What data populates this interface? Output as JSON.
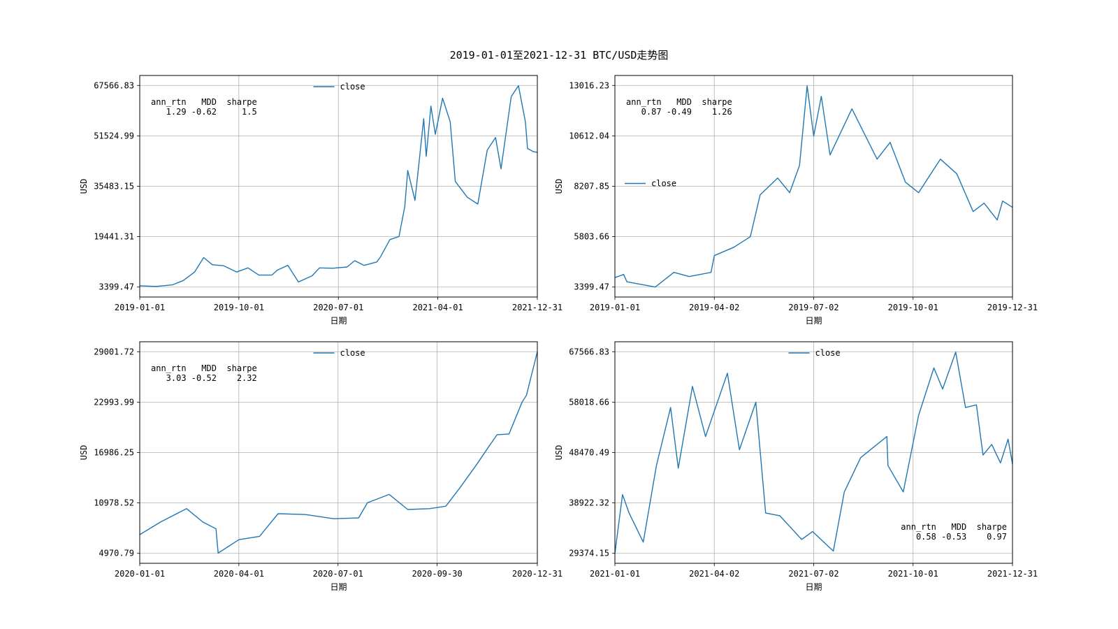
{
  "figure": {
    "title": "2019-01-01至2021-12-31 BTC/USD走势图"
  },
  "colors": {
    "line": "#1f77b4",
    "grid": "#b0b0b0",
    "axis": "#000000"
  },
  "chart_data": [
    {
      "type": "line",
      "name": "full-period",
      "xlabel": "日期",
      "ylabel": "USD",
      "x_ticks": [
        "2019-01-01",
        "2019-10-01",
        "2020-07-01",
        "2021-04-01",
        "2021-12-31"
      ],
      "y_ticks": [
        "3399.47",
        "19441.31",
        "35483.15",
        "51524.99",
        "67566.83"
      ],
      "xlim": [
        "2019-01-01",
        "2021-12-31"
      ],
      "ylim": [
        3399.47,
        67566.83
      ],
      "grid": true,
      "legend": {
        "labels": [
          "close"
        ],
        "placement": "upper-center"
      },
      "stats": {
        "header": "ann_rtn   MDD  sharpe",
        "values": "   1.29 -0.62     1.5",
        "placement": "upper-left"
      },
      "series": [
        {
          "name": "close",
          "points": [
            [
              "2019-01-01",
              3800
            ],
            [
              "2019-02-15",
              3600
            ],
            [
              "2019-04-01",
              4100
            ],
            [
              "2019-05-01",
              5500
            ],
            [
              "2019-06-01",
              8200
            ],
            [
              "2019-06-26",
              12800
            ],
            [
              "2019-07-20",
              10500
            ],
            [
              "2019-08-20",
              10200
            ],
            [
              "2019-09-25",
              8200
            ],
            [
              "2019-10-26",
              9500
            ],
            [
              "2019-11-25",
              7200
            ],
            [
              "2019-12-31",
              7200
            ],
            [
              "2020-01-15",
              8800
            ],
            [
              "2020-02-13",
              10300
            ],
            [
              "2020-03-13",
              5000
            ],
            [
              "2020-04-20",
              7000
            ],
            [
              "2020-05-10",
              9500
            ],
            [
              "2020-06-15",
              9400
            ],
            [
              "2020-07-25",
              9800
            ],
            [
              "2020-08-15",
              11800
            ],
            [
              "2020-09-10",
              10300
            ],
            [
              "2020-10-15",
              11400
            ],
            [
              "2020-10-25",
              13000
            ],
            [
              "2020-11-20",
              18500
            ],
            [
              "2020-12-15",
              19500
            ],
            [
              "2020-12-31",
              29000
            ],
            [
              "2021-01-08",
              40500
            ],
            [
              "2021-01-28",
              31000
            ],
            [
              "2021-02-21",
              57000
            ],
            [
              "2021-02-28",
              45000
            ],
            [
              "2021-03-13",
              61000
            ],
            [
              "2021-03-25",
              52000
            ],
            [
              "2021-04-14",
              63500
            ],
            [
              "2021-05-05",
              56000
            ],
            [
              "2021-05-19",
              37000
            ],
            [
              "2021-06-21",
              32000
            ],
            [
              "2021-07-20",
              29800
            ],
            [
              "2021-08-15",
              47000
            ],
            [
              "2021-09-07",
              51000
            ],
            [
              "2021-09-22",
              41000
            ],
            [
              "2021-10-20",
              64000
            ],
            [
              "2021-11-09",
              67500
            ],
            [
              "2021-11-28",
              56000
            ],
            [
              "2021-12-04",
              47500
            ],
            [
              "2021-12-20",
              46500
            ],
            [
              "2021-12-31",
              46300
            ]
          ]
        }
      ]
    },
    {
      "type": "line",
      "name": "year-2019",
      "xlabel": "日期",
      "ylabel": "USD",
      "x_ticks": [
        "2019-01-01",
        "2019-04-02",
        "2019-07-02",
        "2019-10-01",
        "2019-12-31"
      ],
      "y_ticks": [
        "3399.47",
        "5803.66",
        "8207.85",
        "10612.04",
        "13016.23"
      ],
      "xlim": [
        "2019-01-01",
        "2019-12-31"
      ],
      "ylim": [
        3399.47,
        13016.23
      ],
      "grid": true,
      "legend": {
        "labels": [
          "close"
        ],
        "placement": "center-left"
      },
      "stats": {
        "header": "ann_rtn   MDD  sharpe",
        "values": "   0.87 -0.49    1.26",
        "placement": "upper-left"
      },
      "series": [
        {
          "name": "close",
          "points": [
            [
              "2019-01-01",
              3850
            ],
            [
              "2019-01-09",
              4000
            ],
            [
              "2019-01-12",
              3650
            ],
            [
              "2019-02-07",
              3400
            ],
            [
              "2019-02-24",
              4100
            ],
            [
              "2019-03-10",
              3900
            ],
            [
              "2019-03-30",
              4100
            ],
            [
              "2019-04-02",
              4900
            ],
            [
              "2019-04-20",
              5300
            ],
            [
              "2019-05-05",
              5800
            ],
            [
              "2019-05-14",
              7800
            ],
            [
              "2019-05-30",
              8600
            ],
            [
              "2019-06-10",
              7900
            ],
            [
              "2019-06-19",
              9200
            ],
            [
              "2019-06-26",
              13000
            ],
            [
              "2019-07-02",
              10600
            ],
            [
              "2019-07-09",
              12500
            ],
            [
              "2019-07-17",
              9700
            ],
            [
              "2019-08-06",
              11900
            ],
            [
              "2019-08-29",
              9500
            ],
            [
              "2019-09-10",
              10300
            ],
            [
              "2019-09-24",
              8400
            ],
            [
              "2019-10-06",
              7900
            ],
            [
              "2019-10-26",
              9500
            ],
            [
              "2019-11-10",
              8800
            ],
            [
              "2019-11-25",
              7000
            ],
            [
              "2019-12-05",
              7400
            ],
            [
              "2019-12-17",
              6600
            ],
            [
              "2019-12-22",
              7500
            ],
            [
              "2019-12-31",
              7200
            ]
          ]
        }
      ]
    },
    {
      "type": "line",
      "name": "year-2020",
      "xlabel": "日期",
      "ylabel": "USD",
      "x_ticks": [
        "2020-01-01",
        "2020-04-01",
        "2020-07-01",
        "2020-09-30",
        "2020-12-31"
      ],
      "y_ticks": [
        "4970.79",
        "10978.52",
        "16986.25",
        "22993.99",
        "29001.72"
      ],
      "xlim": [
        "2020-01-01",
        "2020-12-31"
      ],
      "ylim": [
        4970.79,
        29001.72
      ],
      "grid": true,
      "legend": {
        "labels": [
          "close"
        ],
        "placement": "upper-center"
      },
      "stats": {
        "header": "ann_rtn   MDD  sharpe",
        "values": "   3.03 -0.52    2.32",
        "placement": "upper-left"
      },
      "series": [
        {
          "name": "close",
          "points": [
            [
              "2020-01-01",
              7200
            ],
            [
              "2020-01-20",
              8700
            ],
            [
              "2020-02-13",
              10300
            ],
            [
              "2020-02-28",
              8700
            ],
            [
              "2020-03-11",
              7900
            ],
            [
              "2020-03-13",
              5000
            ],
            [
              "2020-04-01",
              6600
            ],
            [
              "2020-04-20",
              7000
            ],
            [
              "2020-05-07",
              9700
            ],
            [
              "2020-06-01",
              9600
            ],
            [
              "2020-06-27",
              9100
            ],
            [
              "2020-07-20",
              9200
            ],
            [
              "2020-07-28",
              11000
            ],
            [
              "2020-08-17",
              12000
            ],
            [
              "2020-09-03",
              10200
            ],
            [
              "2020-09-23",
              10300
            ],
            [
              "2020-10-08",
              10600
            ],
            [
              "2020-10-21",
              12800
            ],
            [
              "2020-11-05",
              15500
            ],
            [
              "2020-11-17",
              17800
            ],
            [
              "2020-11-24",
              19100
            ],
            [
              "2020-12-05",
              19200
            ],
            [
              "2020-12-17",
              23000
            ],
            [
              "2020-12-21",
              23800
            ],
            [
              "2020-12-31",
              29000
            ]
          ]
        }
      ]
    },
    {
      "type": "line",
      "name": "year-2021",
      "xlabel": "日期",
      "ylabel": "USD",
      "x_ticks": [
        "2021-01-01",
        "2021-04-02",
        "2021-07-02",
        "2021-10-01",
        "2021-12-31"
      ],
      "y_ticks": [
        "29374.15",
        "38922.32",
        "48470.49",
        "58018.66",
        "67566.83"
      ],
      "xlim": [
        "2021-01-01",
        "2021-12-31"
      ],
      "ylim": [
        29374.15,
        67566.83
      ],
      "grid": true,
      "legend": {
        "labels": [
          "close"
        ],
        "placement": "upper-center"
      },
      "stats": {
        "header": "ann_rtn   MDD  sharpe",
        "values": "   0.58 -0.53    0.97",
        "placement": "lower-right"
      },
      "series": [
        {
          "name": "close",
          "points": [
            [
              "2021-01-01",
              29400
            ],
            [
              "2021-01-08",
              40500
            ],
            [
              "2021-01-14",
              37000
            ],
            [
              "2021-01-27",
              31500
            ],
            [
              "2021-02-08",
              46000
            ],
            [
              "2021-02-21",
              57000
            ],
            [
              "2021-02-28",
              45500
            ],
            [
              "2021-03-13",
              61000
            ],
            [
              "2021-03-25",
              51500
            ],
            [
              "2021-04-14",
              63500
            ],
            [
              "2021-04-25",
              49000
            ],
            [
              "2021-05-10",
              58000
            ],
            [
              "2021-05-19",
              37000
            ],
            [
              "2021-06-01",
              36500
            ],
            [
              "2021-06-21",
              32000
            ],
            [
              "2021-07-01",
              33500
            ],
            [
              "2021-07-20",
              29800
            ],
            [
              "2021-07-30",
              41000
            ],
            [
              "2021-08-14",
              47500
            ],
            [
              "2021-09-07",
              51500
            ],
            [
              "2021-09-08",
              46000
            ],
            [
              "2021-09-22",
              41000
            ],
            [
              "2021-10-06",
              55500
            ],
            [
              "2021-10-20",
              64500
            ],
            [
              "2021-10-28",
              60500
            ],
            [
              "2021-11-09",
              67500
            ],
            [
              "2021-11-18",
              57000
            ],
            [
              "2021-11-28",
              57500
            ],
            [
              "2021-12-04",
              48000
            ],
            [
              "2021-12-12",
              50000
            ],
            [
              "2021-12-20",
              46500
            ],
            [
              "2021-12-27",
              51000
            ],
            [
              "2021-12-31",
              46300
            ]
          ]
        }
      ]
    }
  ]
}
